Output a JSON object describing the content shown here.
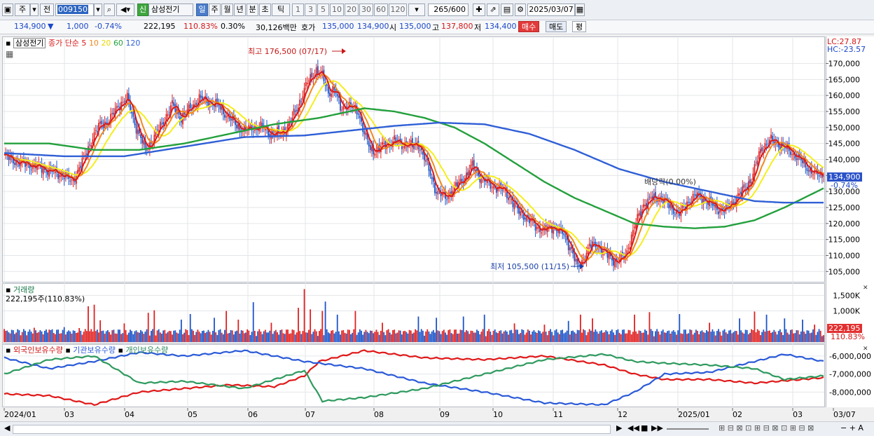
{
  "toolbar": {
    "market": "주",
    "prev": "전",
    "code": "009150",
    "badge": "신",
    "stock_name": "삼성전기",
    "periods": [
      "일",
      "주",
      "월",
      "년",
      "분",
      "초",
      "틱"
    ],
    "active_period": "일",
    "ticks": [
      "1",
      "3",
      "5",
      "10",
      "20",
      "30",
      "60",
      "120"
    ],
    "count": "265",
    "count_max": "/600",
    "date": "2025/03/07"
  },
  "quote": {
    "price": "134,900",
    "change": "1,000",
    "change_pct": "-0.74%",
    "volume": "222,195",
    "volume_ratio": "110.83%",
    "turnover": "0.30%",
    "amount": "30,126백만",
    "hoga_label": "호가",
    "hoga1": "135,000",
    "hoga2": "134,900",
    "open_label": "시",
    "open": "135,000",
    "high_label": "고",
    "high": "137,800",
    "low_label": "저",
    "low": "134,400",
    "buy": "매수",
    "sell": "매도",
    "flat": "평"
  },
  "colors": {
    "ma5": "#d91c1c",
    "ma10": "#f0891e",
    "ma20": "#f5ee1a",
    "ma60": "#23a03c",
    "ma120": "#2f5fd6",
    "up": "#e02020",
    "down": "#1c54c8",
    "foreign": "#e01818",
    "inst": "#2a5ad8",
    "individual": "#2e9a5e"
  },
  "chart_data": [
    {
      "type": "line",
      "title": "삼성전기",
      "legend": [
        "종가 단순 5",
        "10",
        "20",
        "60",
        "120"
      ],
      "legend_placement": "top-left",
      "x_ticks": [
        "2024/01",
        "03",
        "04",
        "05",
        "06",
        "07",
        "08",
        "09",
        "10",
        "11",
        "12",
        "2025/01",
        "02",
        "03",
        "03/07"
      ],
      "ylim": [
        102000,
        178000
      ],
      "y_ticks": [
        "105,000",
        "110,000",
        "115,000",
        "120,000",
        "125,000",
        "130,000",
        "135,000",
        "140,000",
        "145,000",
        "150,000",
        "155,000",
        "160,000",
        "165,000",
        "170,000"
      ],
      "lc": "LC:27.87",
      "hc": "HC:-23.57",
      "last_price": "134,900",
      "last_pct": "-0.74%",
      "annotations": {
        "high": "최고 176,500 (07/17)",
        "low": "최저 105,500 (11/15)",
        "dividend": "배당락(0.00%)"
      },
      "close": [
        {
          "x": 0,
          "y": 141000
        },
        {
          "x": 10,
          "y": 139000
        },
        {
          "x": 20,
          "y": 138000
        },
        {
          "x": 30,
          "y": 136500
        },
        {
          "x": 40,
          "y": 135000
        },
        {
          "x": 45,
          "y": 133000
        },
        {
          "x": 52,
          "y": 139000
        },
        {
          "x": 58,
          "y": 146000
        },
        {
          "x": 64,
          "y": 151000
        },
        {
          "x": 70,
          "y": 152000
        },
        {
          "x": 76,
          "y": 157000
        },
        {
          "x": 82,
          "y": 159000
        },
        {
          "x": 88,
          "y": 150000
        },
        {
          "x": 94,
          "y": 143000
        },
        {
          "x": 100,
          "y": 147000
        },
        {
          "x": 106,
          "y": 152000
        },
        {
          "x": 112,
          "y": 157000
        },
        {
          "x": 118,
          "y": 153000
        },
        {
          "x": 124,
          "y": 156000
        },
        {
          "x": 130,
          "y": 159000
        },
        {
          "x": 136,
          "y": 158000
        },
        {
          "x": 142,
          "y": 157000
        },
        {
          "x": 148,
          "y": 154000
        },
        {
          "x": 154,
          "y": 151000
        },
        {
          "x": 160,
          "y": 149000
        },
        {
          "x": 166,
          "y": 150000
        },
        {
          "x": 172,
          "y": 150000
        },
        {
          "x": 178,
          "y": 148000
        },
        {
          "x": 184,
          "y": 148000
        },
        {
          "x": 190,
          "y": 151000
        },
        {
          "x": 196,
          "y": 157000
        },
        {
          "x": 202,
          "y": 164000
        },
        {
          "x": 208,
          "y": 168000
        },
        {
          "x": 212,
          "y": 166000
        },
        {
          "x": 216,
          "y": 161000
        },
        {
          "x": 220,
          "y": 162000
        },
        {
          "x": 224,
          "y": 156000
        },
        {
          "x": 228,
          "y": 157000
        },
        {
          "x": 232,
          "y": 156000
        },
        {
          "x": 236,
          "y": 155000
        },
        {
          "x": 240,
          "y": 148000
        },
        {
          "x": 244,
          "y": 143000
        },
        {
          "x": 248,
          "y": 143000
        },
        {
          "x": 252,
          "y": 144000
        },
        {
          "x": 256,
          "y": 145000
        },
        {
          "x": 260,
          "y": 146000
        },
        {
          "x": 264,
          "y": 144500
        },
        {
          "x": 268,
          "y": 145000
        },
        {
          "x": 272,
          "y": 144000
        },
        {
          "x": 276,
          "y": 145000
        },
        {
          "x": 282,
          "y": 138000
        },
        {
          "x": 288,
          "y": 130000
        },
        {
          "x": 294,
          "y": 128000
        },
        {
          "x": 300,
          "y": 131000
        },
        {
          "x": 306,
          "y": 134000
        },
        {
          "x": 312,
          "y": 138000
        },
        {
          "x": 318,
          "y": 134000
        },
        {
          "x": 324,
          "y": 132000
        },
        {
          "x": 330,
          "y": 131000
        },
        {
          "x": 336,
          "y": 129000
        },
        {
          "x": 342,
          "y": 124000
        },
        {
          "x": 348,
          "y": 122000
        },
        {
          "x": 354,
          "y": 119000
        },
        {
          "x": 360,
          "y": 118000
        },
        {
          "x": 366,
          "y": 119000
        },
        {
          "x": 372,
          "y": 117000
        },
        {
          "x": 378,
          "y": 112000
        },
        {
          "x": 382,
          "y": 106000
        },
        {
          "x": 386,
          "y": 109000
        },
        {
          "x": 390,
          "y": 113000
        },
        {
          "x": 396,
          "y": 113000
        },
        {
          "x": 402,
          "y": 110000
        },
        {
          "x": 408,
          "y": 108000
        },
        {
          "x": 414,
          "y": 110000
        },
        {
          "x": 420,
          "y": 119000
        },
        {
          "x": 426,
          "y": 126000
        },
        {
          "x": 432,
          "y": 128000
        },
        {
          "x": 438,
          "y": 128000
        },
        {
          "x": 444,
          "y": 125000
        },
        {
          "x": 450,
          "y": 123000
        },
        {
          "x": 456,
          "y": 127000
        },
        {
          "x": 462,
          "y": 129000
        },
        {
          "x": 468,
          "y": 127000
        },
        {
          "x": 474,
          "y": 125000
        },
        {
          "x": 480,
          "y": 124000
        },
        {
          "x": 486,
          "y": 127000
        },
        {
          "x": 492,
          "y": 130000
        },
        {
          "x": 498,
          "y": 134000
        },
        {
          "x": 504,
          "y": 143000
        },
        {
          "x": 510,
          "y": 146000
        },
        {
          "x": 516,
          "y": 145000
        },
        {
          "x": 522,
          "y": 143000
        },
        {
          "x": 528,
          "y": 141000
        },
        {
          "x": 534,
          "y": 138000
        },
        {
          "x": 540,
          "y": 135500
        },
        {
          "x": 546,
          "y": 134900
        }
      ],
      "ma60": [
        {
          "x": 0,
          "y": 145000
        },
        {
          "x": 30,
          "y": 145000
        },
        {
          "x": 60,
          "y": 143000
        },
        {
          "x": 90,
          "y": 143000
        },
        {
          "x": 120,
          "y": 145000
        },
        {
          "x": 150,
          "y": 148000
        },
        {
          "x": 180,
          "y": 151000
        },
        {
          "x": 210,
          "y": 153000
        },
        {
          "x": 240,
          "y": 156000
        },
        {
          "x": 260,
          "y": 155000
        },
        {
          "x": 280,
          "y": 153000
        },
        {
          "x": 300,
          "y": 150000
        },
        {
          "x": 320,
          "y": 145000
        },
        {
          "x": 340,
          "y": 139000
        },
        {
          "x": 360,
          "y": 133000
        },
        {
          "x": 380,
          "y": 128000
        },
        {
          "x": 400,
          "y": 124000
        },
        {
          "x": 420,
          "y": 120000
        },
        {
          "x": 440,
          "y": 119000
        },
        {
          "x": 460,
          "y": 118500
        },
        {
          "x": 480,
          "y": 119000
        },
        {
          "x": 500,
          "y": 121000
        },
        {
          "x": 520,
          "y": 125000
        },
        {
          "x": 546,
          "y": 131000
        }
      ],
      "ma120": [
        {
          "x": 0,
          "y": 142000
        },
        {
          "x": 40,
          "y": 141000
        },
        {
          "x": 80,
          "y": 141000
        },
        {
          "x": 120,
          "y": 144000
        },
        {
          "x": 160,
          "y": 147000
        },
        {
          "x": 200,
          "y": 147500
        },
        {
          "x": 230,
          "y": 149000
        },
        {
          "x": 260,
          "y": 150500
        },
        {
          "x": 290,
          "y": 151500
        },
        {
          "x": 320,
          "y": 151000
        },
        {
          "x": 350,
          "y": 148000
        },
        {
          "x": 380,
          "y": 143000
        },
        {
          "x": 410,
          "y": 137000
        },
        {
          "x": 440,
          "y": 133000
        },
        {
          "x": 470,
          "y": 130000
        },
        {
          "x": 500,
          "y": 127000
        },
        {
          "x": 520,
          "y": 126500
        },
        {
          "x": 546,
          "y": 126500
        }
      ]
    },
    {
      "type": "bar",
      "title": "거래량",
      "value_label": "222,195주(110.83%)",
      "y_ticks": [
        "1,500K",
        "1,000K"
      ],
      "ylim": [
        0,
        1800000
      ],
      "last_value": "222,195",
      "last_pct": "110.83%",
      "values": [
        {
          "x": 0,
          "v": 420000
        },
        {
          "x": 10,
          "v": 380000
        },
        {
          "x": 20,
          "v": 460000
        },
        {
          "x": 30,
          "v": 400000
        },
        {
          "x": 40,
          "v": 480000
        },
        {
          "x": 50,
          "v": 450000
        },
        {
          "x": 56,
          "v": 1150000
        },
        {
          "x": 60,
          "v": 1200000
        },
        {
          "x": 64,
          "v": 700000
        },
        {
          "x": 80,
          "v": 600000
        },
        {
          "x": 96,
          "v": 940000
        },
        {
          "x": 100,
          "v": 1020000
        },
        {
          "x": 118,
          "v": 720000
        },
        {
          "x": 124,
          "v": 900000
        },
        {
          "x": 140,
          "v": 780000
        },
        {
          "x": 148,
          "v": 1000000
        },
        {
          "x": 156,
          "v": 720000
        },
        {
          "x": 166,
          "v": 1280000
        },
        {
          "x": 178,
          "v": 620000
        },
        {
          "x": 196,
          "v": 1100000
        },
        {
          "x": 200,
          "v": 1700000
        },
        {
          "x": 204,
          "v": 1050000
        },
        {
          "x": 212,
          "v": 1000000
        },
        {
          "x": 214,
          "v": 1300000
        },
        {
          "x": 222,
          "v": 880000
        },
        {
          "x": 234,
          "v": 1000000
        },
        {
          "x": 252,
          "v": 620000
        },
        {
          "x": 276,
          "v": 820000
        },
        {
          "x": 288,
          "v": 780000
        },
        {
          "x": 306,
          "v": 820000
        },
        {
          "x": 320,
          "v": 880000
        },
        {
          "x": 340,
          "v": 600000
        },
        {
          "x": 360,
          "v": 560000
        },
        {
          "x": 376,
          "v": 680000
        },
        {
          "x": 384,
          "v": 880000
        },
        {
          "x": 392,
          "v": 760000
        },
        {
          "x": 420,
          "v": 880000
        },
        {
          "x": 430,
          "v": 960000
        },
        {
          "x": 450,
          "v": 900000
        },
        {
          "x": 470,
          "v": 620000
        },
        {
          "x": 490,
          "v": 760000
        },
        {
          "x": 500,
          "v": 980000
        },
        {
          "x": 508,
          "v": 880000
        },
        {
          "x": 520,
          "v": 760000
        },
        {
          "x": 532,
          "v": 720000
        },
        {
          "x": 540,
          "v": 560000
        },
        {
          "x": 546,
          "v": 222195
        }
      ]
    },
    {
      "type": "line",
      "title": "외국인보유수량",
      "series_names": [
        "외국인보유수량",
        "기관보유수량",
        "개인보유수량"
      ],
      "y_ticks": [
        "-6,000,000",
        "-7,000,000",
        "-8,000,000"
      ],
      "ylim": [
        -8800000,
        -5500000
      ],
      "series": [
        {
          "name": "외국인보유수량",
          "values": [
            {
              "x": 0,
              "y": -8100000
            },
            {
              "x": 30,
              "y": -8200000
            },
            {
              "x": 60,
              "y": -8700000
            },
            {
              "x": 90,
              "y": -8000000
            },
            {
              "x": 120,
              "y": -7800000
            },
            {
              "x": 150,
              "y": -7600000
            },
            {
              "x": 180,
              "y": -7700000
            },
            {
              "x": 200,
              "y": -7100000
            },
            {
              "x": 210,
              "y": -6300000
            },
            {
              "x": 240,
              "y": -5700000
            },
            {
              "x": 280,
              "y": -6100000
            },
            {
              "x": 320,
              "y": -6200000
            },
            {
              "x": 360,
              "y": -6000000
            },
            {
              "x": 400,
              "y": -6500000
            },
            {
              "x": 420,
              "y": -7000000
            },
            {
              "x": 440,
              "y": -7300000
            },
            {
              "x": 470,
              "y": -7300000
            },
            {
              "x": 500,
              "y": -7500000
            },
            {
              "x": 546,
              "y": -7200000
            }
          ]
        },
        {
          "name": "기관보유수량",
          "values": [
            {
              "x": 0,
              "y": -6100000
            },
            {
              "x": 30,
              "y": -6700000
            },
            {
              "x": 60,
              "y": -6300000
            },
            {
              "x": 90,
              "y": -5800000
            },
            {
              "x": 120,
              "y": -6000000
            },
            {
              "x": 160,
              "y": -5700000
            },
            {
              "x": 200,
              "y": -6300000
            },
            {
              "x": 240,
              "y": -6700000
            },
            {
              "x": 280,
              "y": -7500000
            },
            {
              "x": 320,
              "y": -8000000
            },
            {
              "x": 360,
              "y": -8600000
            },
            {
              "x": 400,
              "y": -8700000
            },
            {
              "x": 420,
              "y": -8000000
            },
            {
              "x": 440,
              "y": -7000000
            },
            {
              "x": 470,
              "y": -6900000
            },
            {
              "x": 490,
              "y": -6500000
            },
            {
              "x": 520,
              "y": -5900000
            },
            {
              "x": 546,
              "y": -6300000
            }
          ]
        },
        {
          "name": "개인보유수량",
          "values": [
            {
              "x": 0,
              "y": -7000000
            },
            {
              "x": 30,
              "y": -6200000
            },
            {
              "x": 60,
              "y": -6000000
            },
            {
              "x": 90,
              "y": -7500000
            },
            {
              "x": 120,
              "y": -7400000
            },
            {
              "x": 160,
              "y": -7800000
            },
            {
              "x": 200,
              "y": -6800000
            },
            {
              "x": 212,
              "y": -8500000
            },
            {
              "x": 240,
              "y": -8300000
            },
            {
              "x": 280,
              "y": -7800000
            },
            {
              "x": 320,
              "y": -7000000
            },
            {
              "x": 360,
              "y": -6200000
            },
            {
              "x": 400,
              "y": -5900000
            },
            {
              "x": 420,
              "y": -6300000
            },
            {
              "x": 440,
              "y": -6400000
            },
            {
              "x": 470,
              "y": -6500000
            },
            {
              "x": 500,
              "y": -6700000
            },
            {
              "x": 520,
              "y": -7300000
            },
            {
              "x": 546,
              "y": -7100000
            }
          ]
        }
      ]
    }
  ]
}
